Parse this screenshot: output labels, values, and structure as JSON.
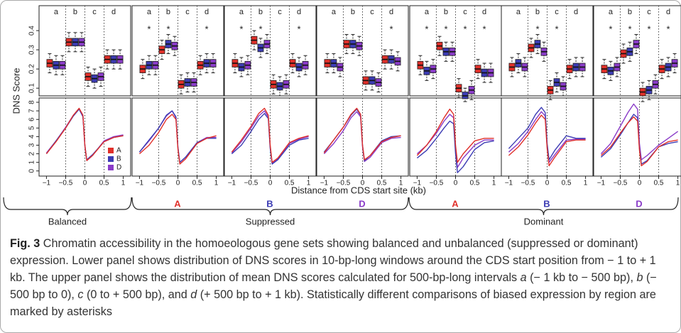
{
  "figure": {
    "y_label": "DNS Score",
    "x_label": "Distance from CDS start site (kb)",
    "regions": [
      "a",
      "b",
      "c",
      "d"
    ],
    "region_x": [
      -0.75,
      -0.25,
      0.25,
      0.75
    ],
    "signif_mark": "*",
    "genomes": [
      {
        "name": "A",
        "color": "#e0302a"
      },
      {
        "name": "B",
        "color": "#3c3cb4"
      },
      {
        "name": "D",
        "color": "#8a3cc8"
      }
    ],
    "box_ylim": [
      0.06,
      0.53
    ],
    "box_yticks": [
      0.1,
      0.2,
      0.3,
      0.4
    ],
    "line_ylim": [
      -0.6,
      8.5
    ],
    "line_yticks": [
      0,
      1,
      2,
      3,
      4,
      5,
      6,
      7,
      8
    ],
    "xlim": [
      -1.1,
      1.1
    ],
    "xticks": [
      {
        "value": -1,
        "label": "−1"
      },
      {
        "value": -0.5,
        "label": "−0.5"
      },
      0,
      0.5,
      1
    ],
    "dividers": [
      -0.5,
      0,
      0.5
    ],
    "curve_x": [
      -1,
      -0.75,
      -0.5,
      -0.3,
      -0.15,
      -0.05,
      0,
      0.05,
      0.2,
      0.5,
      0.75,
      1
    ],
    "panels": [
      {
        "label": null,
        "signif": [
          false,
          false,
          false,
          false
        ],
        "boxes": [
          [
            [
              0.18,
              0.21,
              0.23,
              0.25,
              0.28
            ],
            [
              0.17,
              0.2,
              0.22,
              0.24,
              0.27
            ],
            [
              0.17,
              0.2,
              0.22,
              0.24,
              0.27
            ]
          ],
          [
            [
              0.29,
              0.32,
              0.34,
              0.36,
              0.39
            ],
            [
              0.29,
              0.32,
              0.34,
              0.36,
              0.39
            ],
            [
              0.29,
              0.32,
              0.34,
              0.36,
              0.39
            ]
          ],
          [
            [
              0.11,
              0.14,
              0.16,
              0.18,
              0.21
            ],
            [
              0.1,
              0.13,
              0.15,
              0.17,
              0.2
            ],
            [
              0.11,
              0.14,
              0.16,
              0.18,
              0.21
            ]
          ],
          [
            [
              0.2,
              0.23,
              0.25,
              0.27,
              0.3
            ],
            [
              0.2,
              0.23,
              0.25,
              0.27,
              0.3
            ],
            [
              0.2,
              0.23,
              0.25,
              0.27,
              0.3
            ]
          ]
        ],
        "curves": [
          [
            2.0,
            3.4,
            5.0,
            6.5,
            7.3,
            6.5,
            3.0,
            1.2,
            1.8,
            3.4,
            3.9,
            4.1
          ],
          [
            2.0,
            3.5,
            5.0,
            6.4,
            7.2,
            6.4,
            3.0,
            1.3,
            1.9,
            3.4,
            3.9,
            4.1
          ],
          [
            2.1,
            3.5,
            5.1,
            6.5,
            7.2,
            6.3,
            2.9,
            1.2,
            1.8,
            3.5,
            4.0,
            4.2
          ]
        ]
      },
      {
        "label": "A",
        "signif": [
          true,
          true,
          false,
          true
        ],
        "boxes": [
          [
            [
              0.15,
              0.18,
              0.2,
              0.22,
              0.25
            ],
            [
              0.17,
              0.2,
              0.22,
              0.24,
              0.27
            ],
            [
              0.17,
              0.2,
              0.22,
              0.24,
              0.27
            ]
          ],
          [
            [
              0.25,
              0.28,
              0.3,
              0.32,
              0.35
            ],
            [
              0.28,
              0.31,
              0.33,
              0.35,
              0.38
            ],
            [
              0.27,
              0.3,
              0.32,
              0.34,
              0.37
            ]
          ],
          [
            [
              0.07,
              0.1,
              0.12,
              0.14,
              0.17
            ],
            [
              0.08,
              0.11,
              0.13,
              0.15,
              0.18
            ],
            [
              0.08,
              0.11,
              0.13,
              0.15,
              0.18
            ]
          ],
          [
            [
              0.17,
              0.2,
              0.22,
              0.24,
              0.27
            ],
            [
              0.18,
              0.21,
              0.23,
              0.25,
              0.28
            ],
            [
              0.18,
              0.21,
              0.23,
              0.25,
              0.28
            ]
          ]
        ],
        "curves": [
          [
            2.0,
            3.0,
            4.5,
            6.0,
            6.6,
            6.0,
            2.6,
            0.8,
            1.4,
            3.2,
            3.8,
            4.1
          ],
          [
            2.2,
            3.6,
            5.0,
            6.5,
            7.0,
            6.3,
            2.8,
            1.0,
            1.6,
            3.3,
            3.8,
            3.8
          ],
          [
            2.2,
            3.5,
            5.0,
            6.4,
            7.0,
            6.2,
            2.8,
            1.0,
            1.6,
            3.3,
            3.9,
            3.9
          ]
        ]
      },
      {
        "label": "B",
        "signif": [
          true,
          true,
          false,
          true
        ],
        "boxes": [
          [
            [
              0.18,
              0.21,
              0.23,
              0.25,
              0.28
            ],
            [
              0.16,
              0.19,
              0.21,
              0.23,
              0.26
            ],
            [
              0.17,
              0.2,
              0.22,
              0.24,
              0.27
            ]
          ],
          [
            [
              0.3,
              0.33,
              0.35,
              0.37,
              0.4
            ],
            [
              0.26,
              0.29,
              0.31,
              0.33,
              0.36
            ],
            [
              0.28,
              0.31,
              0.33,
              0.35,
              0.38
            ]
          ],
          [
            [
              0.07,
              0.1,
              0.12,
              0.14,
              0.17
            ],
            [
              0.06,
              0.09,
              0.11,
              0.13,
              0.16
            ],
            [
              0.07,
              0.1,
              0.12,
              0.14,
              0.17
            ]
          ],
          [
            [
              0.18,
              0.21,
              0.23,
              0.25,
              0.28
            ],
            [
              0.16,
              0.19,
              0.21,
              0.23,
              0.26
            ],
            [
              0.17,
              0.2,
              0.22,
              0.24,
              0.27
            ]
          ]
        ],
        "curves": [
          [
            2.2,
            3.6,
            5.2,
            6.7,
            7.3,
            6.5,
            3.0,
            1.0,
            1.5,
            3.3,
            3.8,
            4.1
          ],
          [
            2.0,
            3.0,
            4.6,
            6.0,
            6.7,
            6.1,
            2.6,
            0.8,
            1.3,
            3.0,
            3.6,
            3.8
          ],
          [
            2.1,
            3.4,
            5.0,
            6.4,
            7.0,
            6.3,
            2.8,
            0.9,
            1.4,
            3.2,
            3.7,
            4.0
          ]
        ]
      },
      {
        "label": "D",
        "signif": [
          false,
          false,
          false,
          true
        ],
        "boxes": [
          [
            [
              0.18,
              0.21,
              0.23,
              0.25,
              0.28
            ],
            [
              0.18,
              0.21,
              0.23,
              0.25,
              0.28
            ],
            [
              0.16,
              0.19,
              0.21,
              0.23,
              0.26
            ]
          ],
          [
            [
              0.28,
              0.31,
              0.33,
              0.35,
              0.38
            ],
            [
              0.28,
              0.31,
              0.33,
              0.35,
              0.38
            ],
            [
              0.27,
              0.3,
              0.32,
              0.34,
              0.37
            ]
          ],
          [
            [
              0.09,
              0.12,
              0.14,
              0.16,
              0.19
            ],
            [
              0.09,
              0.12,
              0.14,
              0.16,
              0.19
            ],
            [
              0.08,
              0.11,
              0.13,
              0.15,
              0.18
            ]
          ],
          [
            [
              0.2,
              0.23,
              0.25,
              0.27,
              0.3
            ],
            [
              0.2,
              0.23,
              0.25,
              0.27,
              0.3
            ],
            [
              0.19,
              0.22,
              0.24,
              0.26,
              0.29
            ]
          ]
        ],
        "curves": [
          [
            2.1,
            3.6,
            5.1,
            6.6,
            7.3,
            6.6,
            3.0,
            1.3,
            1.8,
            3.4,
            3.9,
            4.1
          ],
          [
            2.2,
            3.6,
            5.1,
            6.5,
            7.2,
            6.5,
            3.0,
            1.2,
            1.8,
            3.5,
            4.0,
            4.1
          ],
          [
            2.0,
            3.2,
            4.7,
            6.2,
            6.9,
            6.3,
            2.8,
            1.1,
            1.6,
            3.3,
            3.8,
            3.9
          ]
        ]
      },
      {
        "label": "A",
        "signif": [
          true,
          true,
          true,
          true
        ],
        "boxes": [
          [
            [
              0.17,
              0.2,
              0.22,
              0.24,
              0.27
            ],
            [
              0.14,
              0.17,
              0.19,
              0.21,
              0.24
            ],
            [
              0.15,
              0.18,
              0.2,
              0.22,
              0.25
            ]
          ],
          [
            [
              0.27,
              0.3,
              0.32,
              0.34,
              0.37
            ],
            [
              0.24,
              0.27,
              0.29,
              0.31,
              0.34
            ],
            [
              0.24,
              0.27,
              0.29,
              0.31,
              0.34
            ]
          ],
          [
            [
              0.05,
              0.08,
              0.1,
              0.12,
              0.15
            ],
            [
              0.03,
              0.045,
              0.06,
              0.08,
              0.1
            ],
            [
              0.04,
              0.07,
              0.09,
              0.11,
              0.14
            ]
          ],
          [
            [
              0.15,
              0.18,
              0.2,
              0.22,
              0.25
            ],
            [
              0.13,
              0.16,
              0.18,
              0.2,
              0.23
            ],
            [
              0.13,
              0.16,
              0.18,
              0.2,
              0.23
            ]
          ]
        ],
        "curves": [
          [
            1.8,
            3.0,
            4.6,
            6.2,
            7.2,
            6.6,
            3.0,
            1.0,
            2.0,
            3.5,
            3.8,
            3.8
          ],
          [
            1.5,
            2.4,
            3.8,
            5.0,
            5.8,
            5.5,
            2.0,
            -0.2,
            0.5,
            2.5,
            3.3,
            3.5
          ],
          [
            2.0,
            3.0,
            4.4,
            5.8,
            6.6,
            6.2,
            2.6,
            0.4,
            1.5,
            3.0,
            3.6,
            3.6
          ]
        ]
      },
      {
        "label": "B",
        "signif": [
          false,
          true,
          true,
          false
        ],
        "boxes": [
          [
            [
              0.16,
              0.19,
              0.21,
              0.23,
              0.26
            ],
            [
              0.18,
              0.21,
              0.23,
              0.25,
              0.28
            ],
            [
              0.16,
              0.19,
              0.21,
              0.23,
              0.26
            ]
          ],
          [
            [
              0.26,
              0.29,
              0.31,
              0.33,
              0.36
            ],
            [
              0.28,
              0.31,
              0.33,
              0.35,
              0.38
            ],
            [
              0.24,
              0.27,
              0.29,
              0.31,
              0.34
            ]
          ],
          [
            [
              0.04,
              0.07,
              0.09,
              0.11,
              0.14
            ],
            [
              0.08,
              0.11,
              0.13,
              0.15,
              0.18
            ],
            [
              0.06,
              0.09,
              0.11,
              0.13,
              0.16
            ]
          ],
          [
            [
              0.15,
              0.18,
              0.2,
              0.22,
              0.25
            ],
            [
              0.16,
              0.19,
              0.21,
              0.23,
              0.26
            ],
            [
              0.16,
              0.19,
              0.21,
              0.23,
              0.26
            ]
          ]
        ],
        "curves": [
          [
            1.8,
            2.8,
            4.2,
            5.6,
            6.5,
            6.0,
            2.6,
            0.6,
            1.6,
            3.4,
            3.6,
            3.6
          ],
          [
            2.6,
            3.8,
            5.0,
            6.6,
            7.4,
            6.8,
            3.2,
            1.3,
            2.4,
            4.1,
            3.8,
            3.8
          ],
          [
            2.2,
            3.2,
            4.6,
            6.0,
            6.9,
            6.4,
            2.8,
            1.0,
            1.9,
            3.6,
            3.7,
            3.7
          ]
        ]
      },
      {
        "label": "D",
        "signif": [
          true,
          true,
          true,
          true
        ],
        "boxes": [
          [
            [
              0.15,
              0.18,
              0.2,
              0.22,
              0.25
            ],
            [
              0.14,
              0.17,
              0.19,
              0.21,
              0.24
            ],
            [
              0.16,
              0.19,
              0.21,
              0.23,
              0.26
            ]
          ],
          [
            [
              0.23,
              0.26,
              0.28,
              0.3,
              0.33
            ],
            [
              0.24,
              0.27,
              0.29,
              0.31,
              0.34
            ],
            [
              0.28,
              0.31,
              0.33,
              0.35,
              0.38
            ]
          ],
          [
            [
              0.03,
              0.06,
              0.08,
              0.1,
              0.13
            ],
            [
              0.04,
              0.07,
              0.09,
              0.11,
              0.14
            ],
            [
              0.07,
              0.1,
              0.12,
              0.14,
              0.17
            ]
          ],
          [
            [
              0.15,
              0.18,
              0.2,
              0.22,
              0.25
            ],
            [
              0.16,
              0.19,
              0.21,
              0.23,
              0.26
            ],
            [
              0.18,
              0.21,
              0.23,
              0.25,
              0.28
            ]
          ]
        ],
        "curves": [
          [
            1.8,
            2.8,
            4.4,
            5.6,
            6.3,
            5.8,
            2.4,
            0.6,
            1.1,
            2.8,
            3.4,
            3.6
          ],
          [
            1.6,
            2.6,
            4.2,
            5.6,
            6.6,
            6.2,
            2.6,
            0.8,
            1.2,
            2.8,
            3.2,
            3.4
          ],
          [
            2.0,
            3.2,
            5.2,
            6.8,
            7.8,
            7.2,
            3.2,
            1.3,
            1.8,
            3.0,
            3.8,
            4.6
          ]
        ]
      }
    ],
    "groups": [
      "Balanced",
      "Suppressed",
      "Dominant"
    ]
  },
  "caption": {
    "label": "Fig. 3",
    "parts": [
      {
        "text": " Chromatin accessibility in the homoeologous gene sets showing balanced and unbalanced (suppressed or dominant) expression. Lower panel shows distribution of DNS scores in 10-bp-long windows around the CDS start position from − 1 to + 1 kb. The upper panel shows the distribution of mean DNS scores calculated for 500-bp-long intervals ",
        "italic": false
      },
      {
        "text": "a",
        "italic": true
      },
      {
        "text": " (− 1 kb to − 500 bp), ",
        "italic": false
      },
      {
        "text": "b",
        "italic": true
      },
      {
        "text": " (− 500 bp to 0), ",
        "italic": false
      },
      {
        "text": "c",
        "italic": true
      },
      {
        "text": " (0 to + 500 bp), and ",
        "italic": false
      },
      {
        "text": "d",
        "italic": true
      },
      {
        "text": " (+ 500 bp to + 1 kb). Statistically different comparisons of biased expression by region are marked by asterisks",
        "italic": false
      }
    ]
  }
}
